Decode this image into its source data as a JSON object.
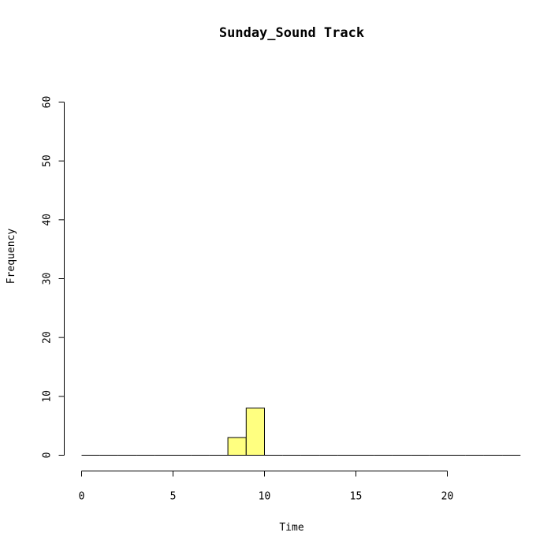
{
  "chart_data": {
    "type": "bar",
    "title": "Sunday_Sound Track",
    "xlabel": "Time",
    "ylabel": "Frequency",
    "bin_width": 1,
    "x_range": [
      0,
      24
    ],
    "x_ticks": [
      0,
      5,
      10,
      15,
      20
    ],
    "ylim": [
      0,
      60
    ],
    "y_ticks": [
      0,
      10,
      20,
      30,
      40,
      50,
      60
    ],
    "bins": [
      {
        "start": 0,
        "end": 1,
        "count": 0
      },
      {
        "start": 1,
        "end": 2,
        "count": 0
      },
      {
        "start": 2,
        "end": 3,
        "count": 0
      },
      {
        "start": 3,
        "end": 4,
        "count": 0
      },
      {
        "start": 4,
        "end": 5,
        "count": 0
      },
      {
        "start": 5,
        "end": 6,
        "count": 0
      },
      {
        "start": 6,
        "end": 7,
        "count": 0
      },
      {
        "start": 7,
        "end": 8,
        "count": 0
      },
      {
        "start": 8,
        "end": 9,
        "count": 3
      },
      {
        "start": 9,
        "end": 10,
        "count": 8
      },
      {
        "start": 10,
        "end": 11,
        "count": 0
      },
      {
        "start": 11,
        "end": 12,
        "count": 0
      },
      {
        "start": 12,
        "end": 13,
        "count": 0
      },
      {
        "start": 13,
        "end": 14,
        "count": 0
      },
      {
        "start": 14,
        "end": 15,
        "count": 0
      },
      {
        "start": 15,
        "end": 16,
        "count": 0
      },
      {
        "start": 16,
        "end": 17,
        "count": 0
      },
      {
        "start": 17,
        "end": 18,
        "count": 0
      },
      {
        "start": 18,
        "end": 19,
        "count": 0
      },
      {
        "start": 19,
        "end": 20,
        "count": 0
      },
      {
        "start": 20,
        "end": 21,
        "count": 0
      },
      {
        "start": 21,
        "end": 22,
        "count": 0
      },
      {
        "start": 22,
        "end": 23,
        "count": 0
      },
      {
        "start": 23,
        "end": 24,
        "count": 0
      }
    ],
    "bar_color": "#ffff80",
    "grid": false
  }
}
